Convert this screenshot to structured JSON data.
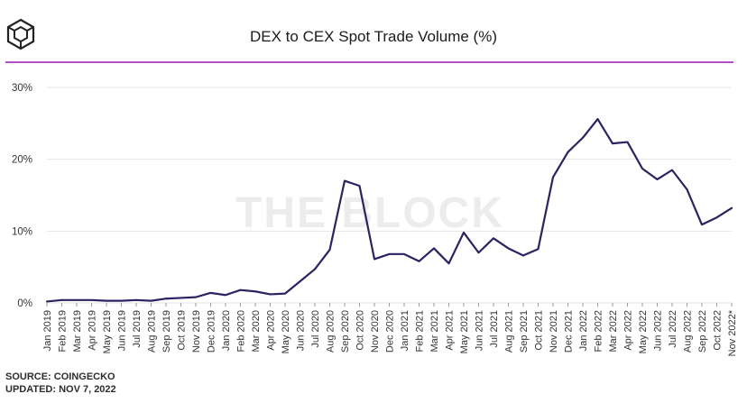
{
  "header": {
    "title": "DEX to CEX Spot Trade Volume (%)",
    "logo_icon": "the-block-cube-logo-icon"
  },
  "watermark": "THE BLOCK",
  "footer": {
    "source": "SOURCE: COINGECKO",
    "updated": "UPDATED: NOV 7, 2022"
  },
  "colors": {
    "line": "#2b2361",
    "accent_rule": "#b54fc8",
    "grid": "#e6e6e6"
  },
  "chart_data": {
    "type": "line",
    "title": "DEX to CEX Spot Trade Volume (%)",
    "xlabel": "",
    "ylabel": "",
    "ylim": [
      0,
      30
    ],
    "yticks": [
      "0%",
      "10%",
      "20%",
      "30%"
    ],
    "grid": true,
    "categories": [
      "Jan 2019",
      "Feb 2019",
      "Mar 2019",
      "Apr 2019",
      "May 2019",
      "Jun 2019",
      "Jul 2019",
      "Aug 2019",
      "Sep 2019",
      "Oct 2019",
      "Nov 2019",
      "Dec 2019",
      "Jan 2020",
      "Feb 2020",
      "Mar 2020",
      "Apr 2020",
      "May 2020",
      "Jun 2020",
      "Jul 2020",
      "Aug 2020",
      "Sep 2020",
      "Oct 2020",
      "Nov 2020",
      "Dec 2020",
      "Jan 2021",
      "Feb 2021",
      "Mar 2021",
      "Apr 2021",
      "May 2021",
      "Jun 2021",
      "Jul 2021",
      "Aug 2021",
      "Sep 2021",
      "Oct 2021",
      "Nov 2021",
      "Dec 2021",
      "Jan 2022",
      "Feb 2022",
      "Mar 2022",
      "Apr 2022",
      "May 2022",
      "Jun 2022",
      "Jul 2022",
      "Aug 2022",
      "Sep 2022",
      "Oct 2022",
      "Nov 2022*"
    ],
    "series": [
      {
        "values": [
          0.2,
          0.4,
          0.4,
          0.4,
          0.3,
          0.3,
          0.4,
          0.3,
          0.6,
          0.7,
          0.8,
          1.4,
          1.1,
          1.8,
          1.6,
          1.2,
          1.3,
          3.0,
          4.7,
          7.4,
          17.0,
          16.3,
          6.1,
          6.8,
          6.8,
          5.8,
          7.6,
          5.5,
          9.8,
          7.0,
          9.0,
          7.6,
          6.6,
          7.5,
          17.5,
          21.0,
          23.0,
          25.6,
          22.2,
          22.4,
          18.7,
          17.2,
          18.5,
          15.8,
          10.9,
          11.9,
          13.2
        ]
      }
    ]
  }
}
